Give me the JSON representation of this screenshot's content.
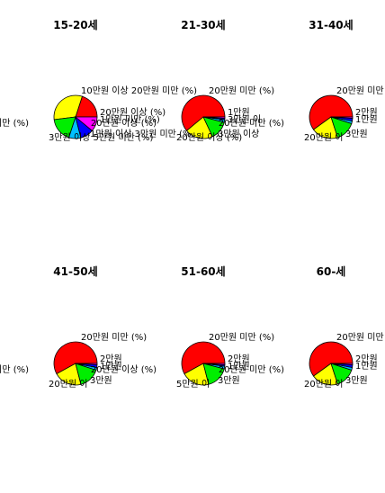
{
  "chart_data": [
    {
      "type": "pie",
      "title": "15-20세",
      "slices": [
        {
          "label": "10만원 이상 20만원 미만 (%)",
          "value": 20,
          "color": "#FF0000"
        },
        {
          "label": "5만원 이상 10만원 미만 (%)",
          "value": 32,
          "color": "#FFFF00"
        },
        {
          "label": "3만원 이상 5만원 미만 (%)",
          "value": 18,
          "color": "#00EE00"
        },
        {
          "label": "1만원 이상 3만원 미만 (%)",
          "value": 9,
          "color": "#00BFFF"
        },
        {
          "label": "1만원 미만 (%)",
          "value": 10,
          "color": "#0000FF"
        },
        {
          "label": "20만원 이상 (%)",
          "value": 11,
          "color": "#FF00FF"
        }
      ]
    },
    {
      "type": "pie",
      "title": "21-30세",
      "slices": [
        {
          "label": "20만원 미만 (%)",
          "value": 61,
          "color": "#FF0000"
        },
        {
          "label": "20만원 이상 (%)",
          "value": 21,
          "color": "#FFFF00"
        },
        {
          "label": "20만원 이상 (%)",
          "value": 14,
          "color": "#00EE00"
        },
        {
          "label": "3만원 이상",
          "value": 2,
          "color": "#00BFFF"
        },
        {
          "label": "3만원 이",
          "value": 1,
          "color": "#0000FF"
        },
        {
          "label": "1만원",
          "value": 1,
          "color": "#FF00FF"
        }
      ]
    },
    {
      "type": "pie",
      "title": "31-40세",
      "slices": [
        {
          "label": "20만원 미만 (%)",
          "value": 60,
          "color": "#FF0000"
        },
        {
          "label": "20만원 미만 (%)",
          "value": 20,
          "color": "#FFFF00"
        },
        {
          "label": "20만원 이",
          "value": 15,
          "color": "#00EE00"
        },
        {
          "label": "3만원",
          "value": 2,
          "color": "#00BFFF"
        },
        {
          "label": "1만원",
          "value": 2,
          "color": "#0000FF"
        },
        {
          "label": "2만원",
          "value": 1,
          "color": "#FF00FF"
        }
      ]
    },
    {
      "type": "pie",
      "title": "41-50세",
      "slices": [
        {
          "label": "20만원 미만 (%)",
          "value": 58,
          "color": "#FF0000"
        },
        {
          "label": "20만원 미만 (%)",
          "value": 21,
          "color": "#FFFF00"
        },
        {
          "label": "20만원 이",
          "value": 16,
          "color": "#00EE00"
        },
        {
          "label": "3만원",
          "value": 2,
          "color": "#00BFFF"
        },
        {
          "label": "1만원",
          "value": 2,
          "color": "#0000FF"
        },
        {
          "label": "2만원",
          "value": 1,
          "color": "#FF00FF"
        }
      ]
    },
    {
      "type": "pie",
      "title": "51-60세",
      "slices": [
        {
          "label": "20만원 미만 (%)",
          "value": 58,
          "color": "#FF0000"
        },
        {
          "label": "20만원 이상 (%)",
          "value": 21,
          "color": "#FFFF00"
        },
        {
          "label": "5만원 이",
          "value": 17,
          "color": "#00EE00"
        },
        {
          "label": "3만원",
          "value": 2,
          "color": "#00BFFF"
        },
        {
          "label": "1만원",
          "value": 1,
          "color": "#0000FF"
        },
        {
          "label": "2만원",
          "value": 1,
          "color": "#FF00FF"
        }
      ]
    },
    {
      "type": "pie",
      "title": "60-세",
      "slices": [
        {
          "label": "20만원 미만 (%)",
          "value": 60,
          "color": "#FF0000"
        },
        {
          "label": "20만원 미만 (%)",
          "value": 20,
          "color": "#FFFF00"
        },
        {
          "label": "20만원 이",
          "value": 15,
          "color": "#00EE00"
        },
        {
          "label": "3만원",
          "value": 2,
          "color": "#00BFFF"
        },
        {
          "label": "1만원",
          "value": 2,
          "color": "#0000FF"
        },
        {
          "label": "2만원",
          "value": 1,
          "color": "#FF00FF"
        }
      ]
    }
  ]
}
